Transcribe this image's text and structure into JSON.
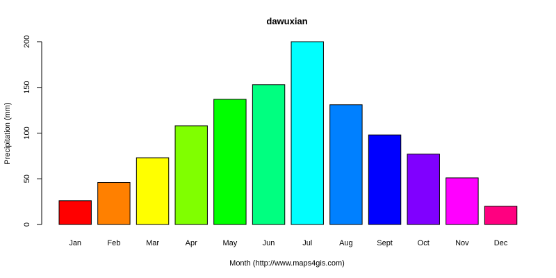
{
  "chart_data": {
    "type": "bar",
    "title": "dawuxian",
    "xlabel": "Month (http://www.maps4gis.com)",
    "ylabel": "Precipitation (mm)",
    "ylim": [
      0,
      200
    ],
    "yticks": [
      0,
      50,
      100,
      150,
      200
    ],
    "categories": [
      "Jan",
      "Feb",
      "Mar",
      "Apr",
      "May",
      "Jun",
      "Jul",
      "Aug",
      "Sept",
      "Oct",
      "Nov",
      "Dec"
    ],
    "values": [
      26,
      46,
      73,
      108,
      137,
      153,
      200,
      131,
      98,
      77,
      51,
      20
    ],
    "colors": [
      "#FF0000",
      "#FF8000",
      "#FFFF00",
      "#80FF00",
      "#00FF00",
      "#00FF80",
      "#00FFFF",
      "#0080FF",
      "#0000FF",
      "#8000FF",
      "#FF00FF",
      "#FF0080"
    ],
    "grid": false,
    "legend": "none"
  }
}
